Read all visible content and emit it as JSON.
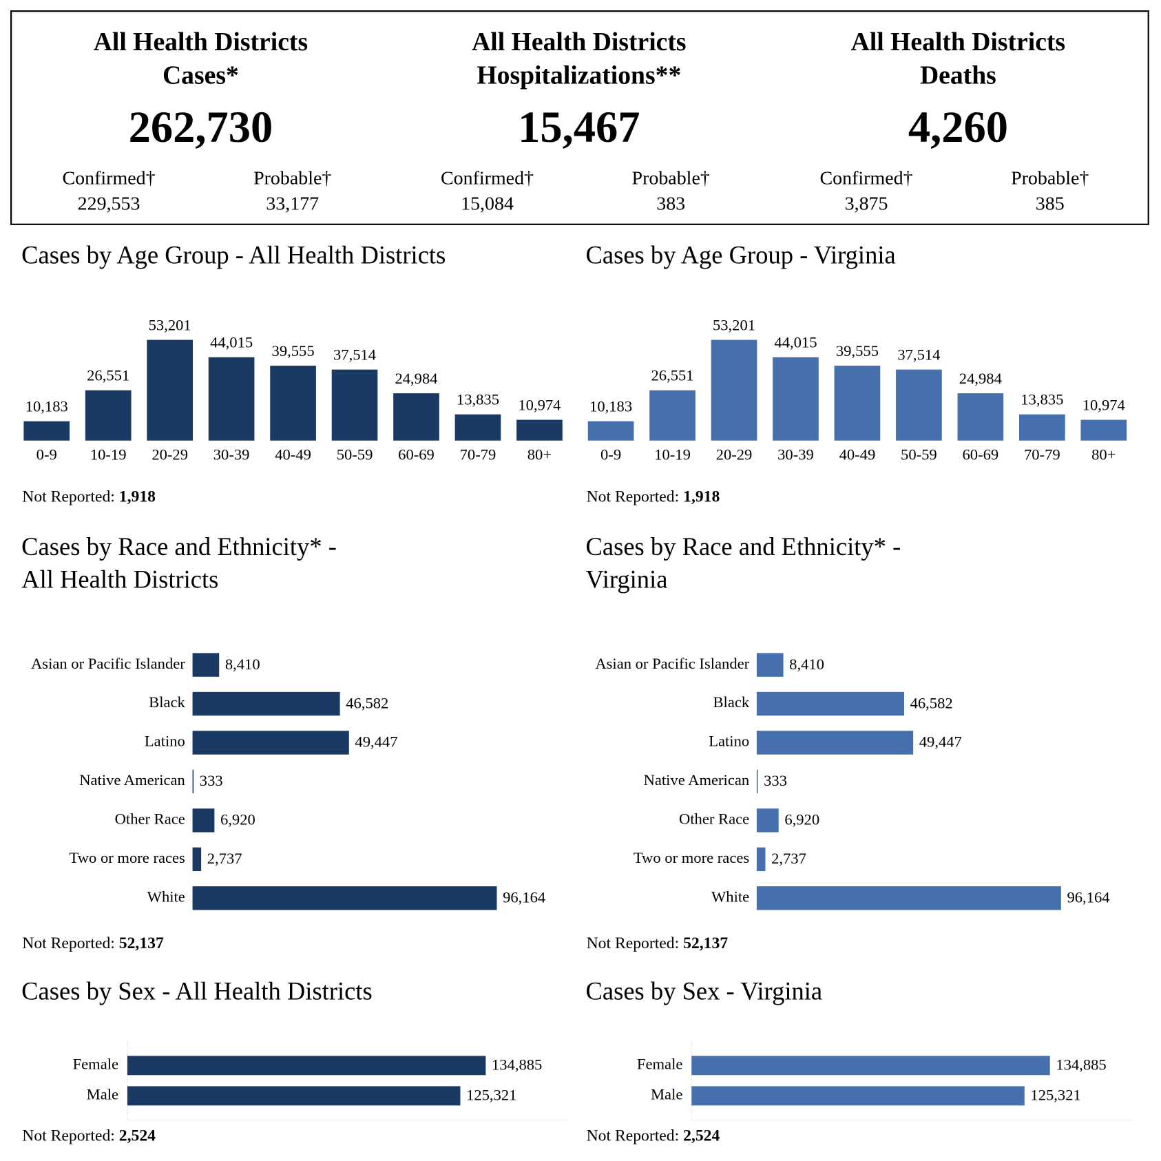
{
  "summary": [
    {
      "title": [
        "All Health Districts",
        "Cases*"
      ],
      "total": "262,730",
      "breakdown": [
        {
          "label": "Confirmed†",
          "value": "229,553"
        },
        {
          "label": "Probable†",
          "value": "33,177"
        }
      ]
    },
    {
      "title": [
        "All Health Districts",
        "Hospitalizations**"
      ],
      "total": "15,467",
      "breakdown": [
        {
          "label": "Confirmed†",
          "value": "15,084"
        },
        {
          "label": "Probable†",
          "value": "383"
        }
      ]
    },
    {
      "title": [
        "All Health Districts",
        "Deaths"
      ],
      "total": "4,260",
      "breakdown": [
        {
          "label": "Confirmed†",
          "value": "3,875"
        },
        {
          "label": "Probable†",
          "value": "385"
        }
      ]
    }
  ],
  "chart_data": [
    {
      "type": "bar",
      "orientation": "vertical",
      "title": [
        "Cases by Age Group - All Health Districts"
      ],
      "categories": [
        "0-9",
        "10-19",
        "20-29",
        "30-39",
        "40-49",
        "50-59",
        "60-69",
        "70-79",
        "80+"
      ],
      "values": [
        10183,
        26551,
        53201,
        44015,
        39555,
        37514,
        24984,
        13835,
        10974
      ],
      "value_labels": [
        "10,183",
        "26,551",
        "53,201",
        "44,015",
        "39,555",
        "37,514",
        "24,984",
        "13,835",
        "10,974"
      ],
      "color": "#1b3a63",
      "note": {
        "label": "Not Reported:",
        "value": "1,918"
      }
    },
    {
      "type": "bar",
      "orientation": "vertical",
      "title": [
        "Cases by Age Group - Virginia"
      ],
      "categories": [
        "0-9",
        "10-19",
        "20-29",
        "30-39",
        "40-49",
        "50-59",
        "60-69",
        "70-79",
        "80+"
      ],
      "values": [
        10183,
        26551,
        53201,
        44015,
        39555,
        37514,
        24984,
        13835,
        10974
      ],
      "value_labels": [
        "10,183",
        "26,551",
        "53,201",
        "44,015",
        "39,555",
        "37,514",
        "24,984",
        "13,835",
        "10,974"
      ],
      "color": "#466fae",
      "note": {
        "label": "Not Reported:",
        "value": "1,918"
      }
    },
    {
      "type": "bar",
      "orientation": "horizontal",
      "title": [
        "Cases by Race and Ethnicity* -",
        "All Health Districts"
      ],
      "categories": [
        "Asian or Pacific Islander",
        "Black",
        "Latino",
        "Native American",
        "Other Race",
        "Two or more races",
        "White"
      ],
      "values": [
        8410,
        46582,
        49447,
        333,
        6920,
        2737,
        96164
      ],
      "value_labels": [
        "8,410",
        "46,582",
        "49,447",
        "333",
        "6,920",
        "2,737",
        "96,164"
      ],
      "color": "#1b3a63",
      "note": {
        "label": "Not Reported:",
        "value": "52,137"
      }
    },
    {
      "type": "bar",
      "orientation": "horizontal",
      "title": [
        "Cases by Race and Ethnicity* -",
        "Virginia"
      ],
      "categories": [
        "Asian or Pacific Islander",
        "Black",
        "Latino",
        "Native American",
        "Other Race",
        "Two or more races",
        "White"
      ],
      "values": [
        8410,
        46582,
        49447,
        333,
        6920,
        2737,
        96164
      ],
      "value_labels": [
        "8,410",
        "46,582",
        "49,447",
        "333",
        "6,920",
        "2,737",
        "96,164"
      ],
      "color": "#466fae",
      "note": {
        "label": "Not Reported:",
        "value": "52,137"
      }
    },
    {
      "type": "bar",
      "orientation": "horizontal",
      "title": [
        "Cases by Sex - All Health Districts"
      ],
      "categories": [
        "Female",
        "Male"
      ],
      "values": [
        134885,
        125321
      ],
      "value_labels": [
        "134,885",
        "125,321"
      ],
      "color": "#1b3a63",
      "note": {
        "label": "Not Reported:",
        "value": "2,524"
      }
    },
    {
      "type": "bar",
      "orientation": "horizontal",
      "title": [
        "Cases by Sex - Virginia"
      ],
      "categories": [
        "Female",
        "Male"
      ],
      "values": [
        134885,
        125321
      ],
      "value_labels": [
        "134,885",
        "125,321"
      ],
      "color": "#466fae",
      "note": {
        "label": "Not Reported:",
        "value": "2,524"
      }
    }
  ]
}
